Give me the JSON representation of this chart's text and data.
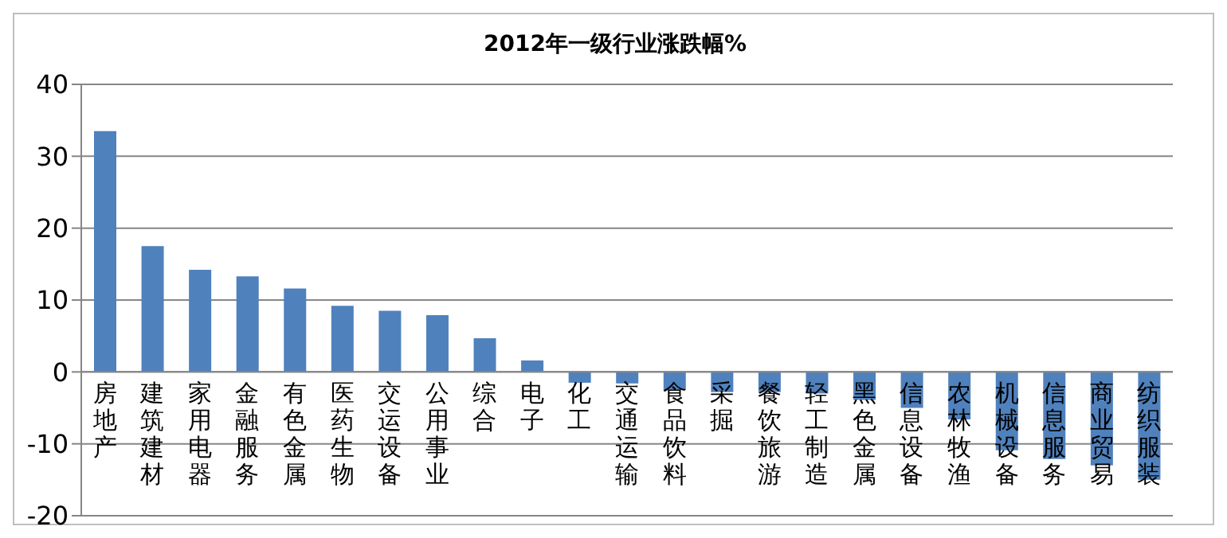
{
  "chart_data": {
    "type": "bar",
    "title": "2012年一级行业涨跌幅%",
    "categories": [
      "房地产",
      "建筑建材",
      "家用电器",
      "金融服务",
      "有色金属",
      "医药生物",
      "交运设备",
      "公用事业",
      "综合",
      "电子",
      "化工",
      "交通运输",
      "食品饮料",
      "采掘",
      "餐饮旅游",
      "轻工制造",
      "黑色金属",
      "信息设备",
      "农林牧渔",
      "机械设备",
      "信息服务",
      "商业贸易",
      "纺织服装"
    ],
    "values": [
      33.5,
      17.5,
      14.2,
      13.3,
      11.6,
      9.2,
      8.5,
      7.9,
      4.7,
      1.6,
      -1.5,
      -1.6,
      -2.5,
      -2.8,
      -2.8,
      -3.0,
      -3.9,
      -5.0,
      -6.6,
      -10.9,
      -12.1,
      -13.0,
      -15.0
    ],
    "color": "#4f81bd",
    "ylim": [
      -20,
      40
    ],
    "yticks": [
      -20,
      -10,
      0,
      10,
      20,
      30,
      40
    ],
    "grid": "y"
  }
}
